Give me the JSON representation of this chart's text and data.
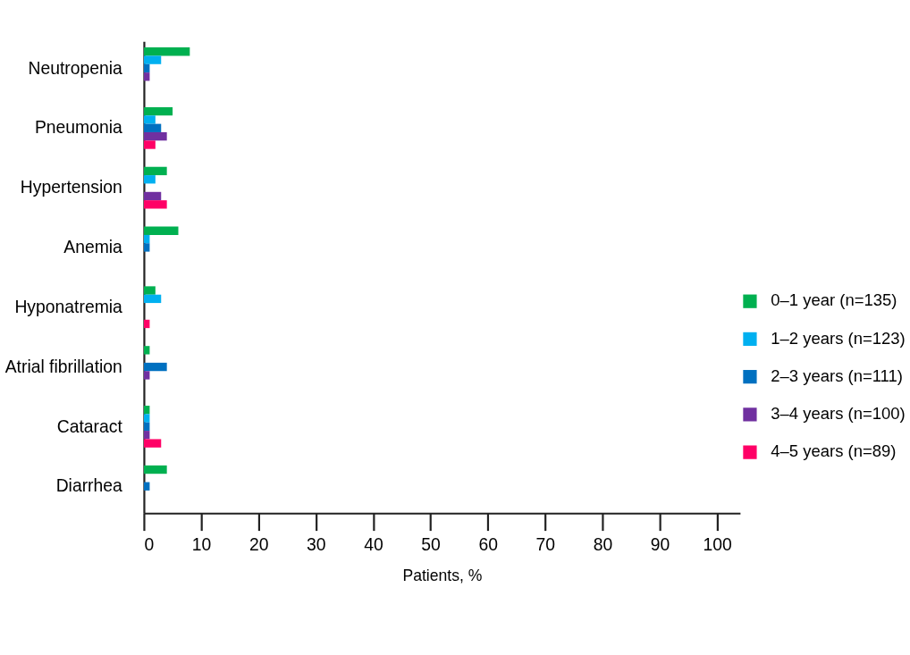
{
  "chart_data": {
    "type": "bar",
    "orientation": "horizontal",
    "xlabel": "Patients, %",
    "categories": [
      "Neutropenia",
      "Pneumonia",
      "Hypertension",
      "Anemia",
      "Hyponatremia",
      "Atrial fibrillation",
      "Cataract",
      "Diarrhea"
    ],
    "series": [
      {
        "name": "0–1 year (n=135)",
        "color": "#00b050",
        "values": [
          8,
          5,
          4,
          6,
          2,
          1,
          1,
          4
        ]
      },
      {
        "name": "1–2 years (n=123)",
        "color": "#00b0f0",
        "values": [
          3,
          2,
          2,
          1,
          3,
          null,
          1,
          null
        ]
      },
      {
        "name": "2–3 years (n=111)",
        "color": "#0070c0",
        "values": [
          1,
          3,
          null,
          1,
          null,
          4,
          1,
          1
        ]
      },
      {
        "name": "3–4 years (n=100)",
        "color": "#7030a0",
        "values": [
          1,
          4,
          3,
          null,
          null,
          1,
          1,
          null
        ]
      },
      {
        "name": "4–5 years (n=89)",
        "color": "#ff0066",
        "values": [
          null,
          2,
          4,
          null,
          1,
          null,
          3,
          null
        ]
      }
    ],
    "xlim": [
      0,
      104
    ],
    "xticks": [
      0,
      10,
      20,
      30,
      40,
      50,
      60,
      70,
      80,
      90,
      100
    ],
    "grid": false,
    "legend": "right"
  }
}
